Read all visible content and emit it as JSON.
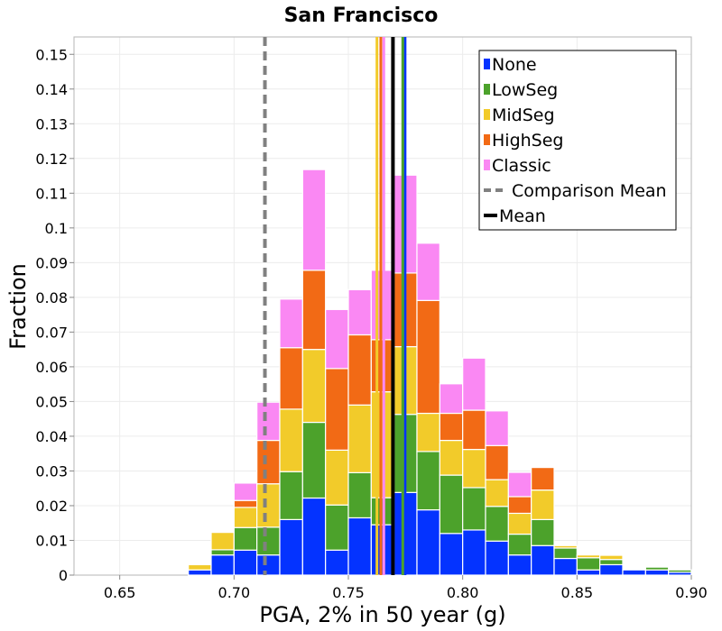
{
  "chart_data": {
    "type": "bar",
    "stacked": true,
    "title": "San Francisco",
    "xlabel": "PGA, 2% in 50 year (g)",
    "ylabel": "Fraction",
    "xlim": [
      0.63,
      0.9
    ],
    "ylim": [
      0,
      0.155
    ],
    "grid": true,
    "legend_position": "top-right",
    "x_ticks": [
      "0.65",
      "0.70",
      "0.75",
      "0.80",
      "0.85",
      "0.90"
    ],
    "y_ticks": [
      "0",
      "0.01",
      "0.02",
      "0.03",
      "0.04",
      "0.05",
      "0.06",
      "0.07",
      "0.08",
      "0.09",
      "0.1",
      "0.11",
      "0.12",
      "0.13",
      "0.14",
      "0.15"
    ],
    "bin_width": 0.01,
    "bin_centers": [
      0.685,
      0.695,
      0.705,
      0.715,
      0.725,
      0.735,
      0.745,
      0.755,
      0.765,
      0.775,
      0.785,
      0.795,
      0.805,
      0.815,
      0.825,
      0.835,
      0.845,
      0.855,
      0.865,
      0.875,
      0.885,
      0.895
    ],
    "series": [
      {
        "name": "None",
        "color": "#0433ff",
        "values": [
          0.0015,
          0.0058,
          0.0072,
          0.0058,
          0.016,
          0.0222,
          0.0072,
          0.0165,
          0.0145,
          0.0238,
          0.0188,
          0.012,
          0.013,
          0.0098,
          0.0058,
          0.0085,
          0.0048,
          0.0015,
          0.003,
          0.0015,
          0.0015,
          0.0008
        ]
      },
      {
        "name": "LowSeg",
        "color": "#4ca22b",
        "values": [
          0.0,
          0.0015,
          0.0065,
          0.008,
          0.0138,
          0.0218,
          0.013,
          0.013,
          0.0078,
          0.0225,
          0.0168,
          0.0168,
          0.0122,
          0.01,
          0.006,
          0.0075,
          0.003,
          0.0035,
          0.0015,
          0.0,
          0.0008,
          0.0007
        ]
      },
      {
        "name": "MidSeg",
        "color": "#f2cb2a",
        "values": [
          0.0015,
          0.005,
          0.0058,
          0.0125,
          0.018,
          0.021,
          0.0158,
          0.0195,
          0.0305,
          0.0195,
          0.011,
          0.01,
          0.011,
          0.0077,
          0.006,
          0.0085,
          0.0007,
          0.0008,
          0.0012,
          0.0,
          0.0,
          0.0
        ]
      },
      {
        "name": "HighSeg",
        "color": "#f26a15",
        "values": [
          0.0,
          0.0,
          0.002,
          0.0125,
          0.0177,
          0.0228,
          0.0235,
          0.0202,
          0.015,
          0.0212,
          0.0325,
          0.0078,
          0.0113,
          0.0098,
          0.0048,
          0.0065,
          0.0,
          0.0,
          0.0,
          0.0,
          0.0,
          0.0
        ]
      },
      {
        "name": "Classic",
        "color": "#fa88f3",
        "values": [
          0.0,
          0.0,
          0.005,
          0.011,
          0.014,
          0.029,
          0.017,
          0.013,
          0.02,
          0.0282,
          0.0165,
          0.0085,
          0.015,
          0.01,
          0.007,
          0.0,
          0.0,
          0.0,
          0.0,
          0.0,
          0.0,
          0.0
        ]
      }
    ],
    "mean_lines": [
      {
        "series": "None",
        "color": "#0433ff",
        "x": 0.7748
      },
      {
        "series": "LowSeg",
        "color": "#4ca22b",
        "x": 0.7738
      },
      {
        "series": "MidSeg",
        "color": "#f2cb2a",
        "x": 0.7625
      },
      {
        "series": "HighSeg",
        "color": "#f26a15",
        "x": 0.7642
      },
      {
        "series": "Classic",
        "color": "#fa88f3",
        "x": 0.7655
      }
    ],
    "comparison_mean": {
      "name": "Comparison Mean",
      "x": 0.7135,
      "color": "#808080"
    },
    "overall_mean": {
      "name": "Mean",
      "x": 0.7695,
      "color": "#000000"
    }
  }
}
